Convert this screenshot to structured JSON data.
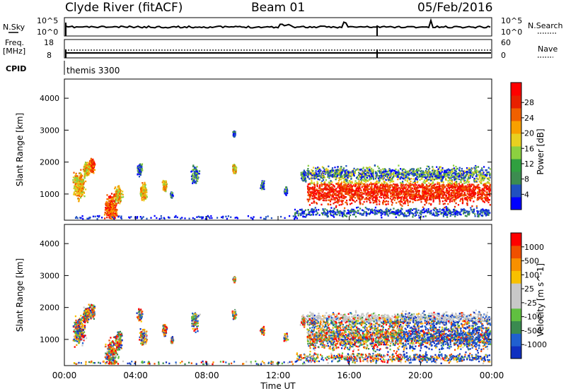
{
  "header": {
    "station": "Clyde River (fitACF)",
    "beam": "Beam 01",
    "date": "05/Feb/2016"
  },
  "noise_panel": {
    "left_label": "N.Sky",
    "right_label": "N.Search",
    "left_ticks": [
      "10^5",
      "10^0"
    ],
    "right_ticks": [
      "10^5",
      "10^0"
    ]
  },
  "freq_panel": {
    "left_label_1": "Freq.",
    "left_label_2": "[MHz]",
    "right_label": "Nave",
    "left_ticks": [
      "18",
      "8"
    ],
    "right_ticks": [
      "60",
      "0"
    ]
  },
  "cpid_panel": {
    "label": "CPID",
    "mode": "themis 3300"
  },
  "x_axis": {
    "title": "Time UT",
    "ticks": [
      "00:00",
      "04:00",
      "08:00",
      "12:00",
      "16:00",
      "20:00",
      "00:00"
    ]
  },
  "chart_data": [
    {
      "type": "heatmap",
      "ylabel": "Slant Range [km]",
      "ylim": [
        180,
        4600
      ],
      "y_ticks": [
        1000,
        2000,
        3000,
        4000
      ],
      "xlim_hours": [
        0,
        24
      ],
      "colorbar_label": "Power [dB]",
      "colorbar_ticks": [
        "4",
        "8",
        "12",
        "16",
        "20",
        "24",
        "28"
      ],
      "colorbar_colors": [
        "#0000ff",
        "#2050c0",
        "#3c8c50",
        "#30a040",
        "#8cd040",
        "#e8d020",
        "#f8a000",
        "#f06000",
        "#e82000",
        "#ff0000"
      ]
    },
    {
      "type": "heatmap",
      "ylabel": "Slant Range [km]",
      "ylim": [
        180,
        4600
      ],
      "y_ticks": [
        1000,
        2000,
        3000,
        4000
      ],
      "xlim_hours": [
        0,
        24
      ],
      "colorbar_label": "Velocity [m s^-1]",
      "colorbar_ticks": [
        "1000",
        "500",
        "100",
        "25",
        "-25",
        "-100",
        "-500",
        "-1000"
      ],
      "colorbar_colors": [
        "#1030c0",
        "#2060d0",
        "#3a8a50",
        "#60c040",
        "#c8c8c8",
        "#c8c8c8",
        "#f8c000",
        "#f89000",
        "#f05000",
        "#ff0000"
      ]
    }
  ]
}
